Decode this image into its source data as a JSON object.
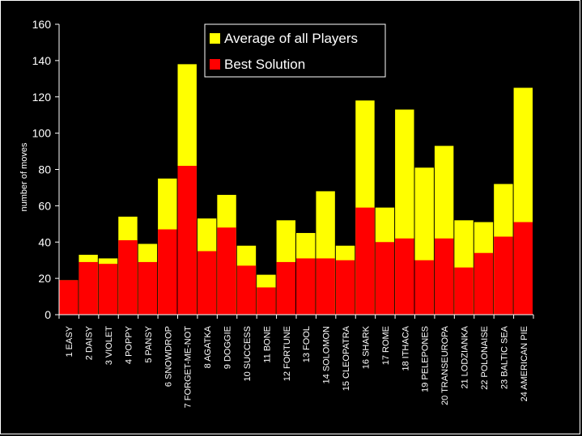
{
  "colors": {
    "background": "#000000",
    "average": "#ffff00",
    "best": "#ff0000",
    "axis": "#ffffff",
    "text": "#ffffff"
  },
  "chart_data": {
    "type": "bar",
    "stacked": "overlay",
    "title": "",
    "xlabel": "",
    "ylabel": "number of moves",
    "ylim": [
      0,
      160
    ],
    "yticks": [
      0,
      20,
      40,
      60,
      80,
      100,
      120,
      140,
      160
    ],
    "grid": false,
    "legend_position": "top-center",
    "categories": [
      "1 EASY",
      "2 DAISY",
      "3 VIOLET",
      "4 POPPY",
      "5 PANSY",
      "6 SNOWDROP",
      "7 FORGET-ME-NOT",
      "8 AGATKA",
      "9 DOGGIE",
      "10 SUCCESS",
      "11 BONE",
      "12 FORTUNE",
      "13 FOOL",
      "14 SOLOMON",
      "15 CLEOPATRA",
      "16 SHARK",
      "17 ROME",
      "18 ITHACA",
      "19 PELEPONES",
      "20 TRANSEUROPA",
      "21 LODZIANKA",
      "22 POLONAISE",
      "23 BALTIC SEA",
      "24 AMERICAN PIE"
    ],
    "series": [
      {
        "name": "Average of all Players",
        "color": "#ffff00",
        "values": [
          19,
          33,
          31,
          54,
          39,
          75,
          138,
          53,
          66,
          38,
          22,
          52,
          45,
          68,
          38,
          118,
          59,
          113,
          81,
          93,
          52,
          51,
          72,
          125
        ]
      },
      {
        "name": "Best Solution",
        "color": "#ff0000",
        "values": [
          19,
          29,
          28,
          41,
          29,
          47,
          82,
          35,
          48,
          27,
          15,
          29,
          31,
          31,
          30,
          59,
          40,
          42,
          30,
          42,
          26,
          34,
          43,
          51
        ]
      }
    ]
  }
}
